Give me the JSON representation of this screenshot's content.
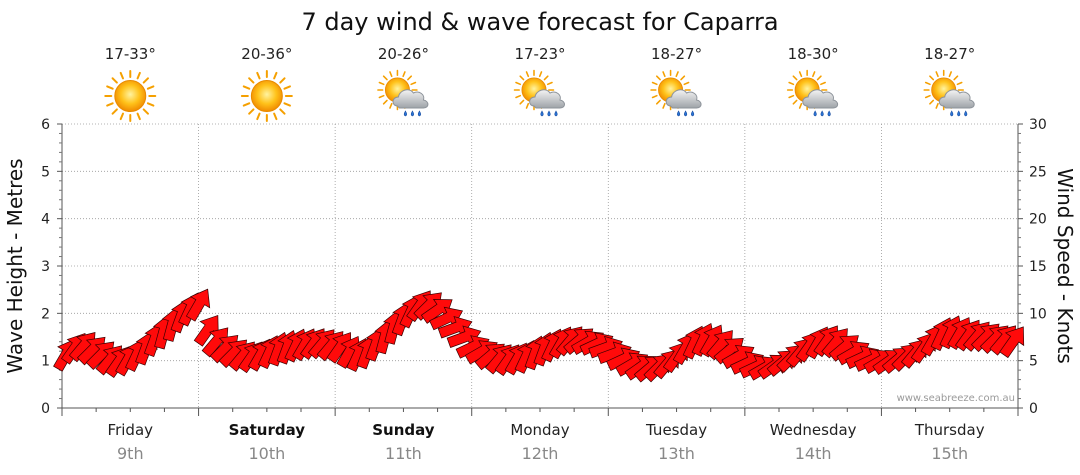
{
  "title": "7 day wind & wave forecast for Caparra",
  "watermark": "www.seabreeze.com.au",
  "colors": {
    "arrow_fill": "#ff0a0a",
    "arrow_stroke": "#3a0000",
    "grid": "#9a9a9a",
    "date_text": "#888888"
  },
  "days": [
    {
      "name": "Friday",
      "date": "9th",
      "temp": "17-33°",
      "icon": "sunny-icon",
      "bold": false
    },
    {
      "name": "Saturday",
      "date": "10th",
      "temp": "20-36°",
      "icon": "sunny-icon",
      "bold": true
    },
    {
      "name": "Sunday",
      "date": "11th",
      "temp": "20-26°",
      "icon": "sun-cloud-rain-icon",
      "bold": true
    },
    {
      "name": "Monday",
      "date": "12th",
      "temp": "17-23°",
      "icon": "sun-cloud-rain-icon",
      "bold": false
    },
    {
      "name": "Tuesday",
      "date": "13th",
      "temp": "18-27°",
      "icon": "sun-cloud-rain-icon",
      "bold": false
    },
    {
      "name": "Wednesday",
      "date": "14th",
      "temp": "18-30°",
      "icon": "sun-cloud-rain-icon",
      "bold": false
    },
    {
      "name": "Thursday",
      "date": "15th",
      "temp": "18-27°",
      "icon": "sun-cloud-rain-icon",
      "bold": false
    }
  ],
  "chart_data": {
    "type": "line",
    "left_axis": {
      "label": "Wave Height - Metres",
      "min": 0,
      "max": 6,
      "ticks": [
        "0",
        "1",
        "2",
        "3",
        "4",
        "5",
        "6"
      ]
    },
    "right_axis": {
      "label": "Wind Speed - Knots",
      "min": 0,
      "max": 30,
      "ticks": [
        "0",
        "5",
        "10",
        "15",
        "20",
        "25",
        "30"
      ]
    },
    "grid": true,
    "wind_knots": [
      5.7,
      6.4,
      6.6,
      6.2,
      5.7,
      5.2,
      5.0,
      5.2,
      5.7,
      6.4,
      7.3,
      8.1,
      8.9,
      9.8,
      10.5,
      11.0,
      8.3,
      7.1,
      6.4,
      5.9,
      5.6,
      5.5,
      5.7,
      6.0,
      6.3,
      6.5,
      6.7,
      6.8,
      6.9,
      6.9,
      6.7,
      6.5,
      6.0,
      5.7,
      6.0,
      6.8,
      7.6,
      8.6,
      9.5,
      10.3,
      10.9,
      10.9,
      10.4,
      9.5,
      8.5,
      7.5,
      6.5,
      6.0,
      5.6,
      5.3,
      5.2,
      5.3,
      5.5,
      5.9,
      6.3,
      6.7,
      7.0,
      7.2,
      7.2,
      7.0,
      6.8,
      6.4,
      5.8,
      5.2,
      4.7,
      4.4,
      4.3,
      4.4,
      4.8,
      5.5,
      6.4,
      7.0,
      7.3,
      7.2,
      6.8,
      6.2,
      5.5,
      4.8,
      4.4,
      4.3,
      4.5,
      4.9,
      5.4,
      6.0,
      6.6,
      7.0,
      7.2,
      7.0,
      6.5,
      5.9,
      5.4,
      5.1,
      5.0,
      5.0,
      5.2,
      5.5,
      5.9,
      6.5,
      7.3,
      7.9,
      8.1,
      8.0,
      7.8,
      7.7,
      7.6,
      7.4,
      7.3,
      7.1
    ],
    "wave_height_m": [
      1.14,
      1.28,
      1.32,
      1.24,
      1.14,
      1.04,
      1.0,
      1.04,
      1.14,
      1.28,
      1.46,
      1.62,
      1.78,
      1.96,
      2.1,
      2.2,
      1.66,
      1.42,
      1.28,
      1.18,
      1.12,
      1.1,
      1.14,
      1.2,
      1.26,
      1.3,
      1.34,
      1.36,
      1.38,
      1.38,
      1.34,
      1.3,
      1.2,
      1.14,
      1.2,
      1.36,
      1.52,
      1.72,
      1.9,
      2.06,
      2.18,
      2.18,
      2.08,
      1.9,
      1.7,
      1.5,
      1.3,
      1.2,
      1.12,
      1.06,
      1.04,
      1.06,
      1.1,
      1.18,
      1.26,
      1.34,
      1.4,
      1.44,
      1.44,
      1.4,
      1.36,
      1.28,
      1.16,
      1.04,
      0.94,
      0.88,
      0.86,
      0.88,
      0.96,
      1.1,
      1.28,
      1.4,
      1.46,
      1.44,
      1.36,
      1.24,
      1.1,
      0.96,
      0.88,
      0.86,
      0.9,
      0.98,
      1.08,
      1.2,
      1.32,
      1.4,
      1.44,
      1.4,
      1.3,
      1.18,
      1.08,
      1.02,
      1.0,
      1.0,
      1.04,
      1.1,
      1.18,
      1.3,
      1.46,
      1.58,
      1.62,
      1.6,
      1.56,
      1.54,
      1.52,
      1.48,
      1.46,
      1.42
    ],
    "wind_direction_deg": [
      210,
      215,
      220,
      225,
      225,
      220,
      215,
      210,
      205,
      200,
      200,
      195,
      195,
      200,
      205,
      210,
      215,
      220,
      225,
      225,
      220,
      215,
      210,
      205,
      200,
      200,
      205,
      210,
      215,
      220,
      220,
      215,
      210,
      205,
      200,
      200,
      195,
      195,
      200,
      205,
      215,
      225,
      235,
      245,
      250,
      250,
      245,
      240,
      230,
      220,
      215,
      210,
      205,
      200,
      200,
      205,
      210,
      220,
      230,
      240,
      245,
      250,
      250,
      245,
      240,
      235,
      230,
      225,
      220,
      215,
      210,
      205,
      205,
      210,
      220,
      230,
      240,
      245,
      245,
      240,
      235,
      230,
      225,
      220,
      215,
      210,
      215,
      220,
      230,
      240,
      245,
      245,
      240,
      235,
      230,
      225,
      220,
      215,
      210,
      205,
      205,
      210,
      215,
      220,
      225,
      225,
      220,
      215
    ]
  }
}
